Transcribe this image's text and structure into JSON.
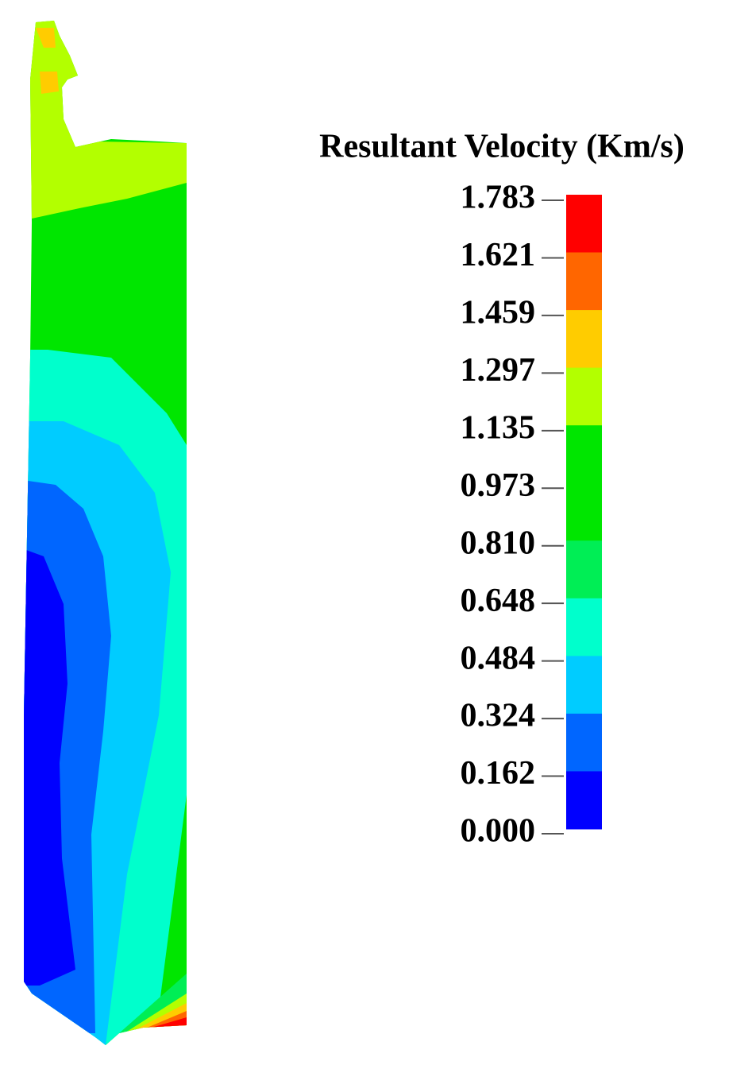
{
  "legend": {
    "title": "Resultant Velocity (Km/s)",
    "ticks": [
      "1.783",
      "1.621",
      "1.459",
      "1.297",
      "1.135",
      "0.973",
      "0.810",
      "0.648",
      "0.484",
      "0.324",
      "0.162",
      "0.000"
    ],
    "colors": [
      "#ff0000",
      "#ff6600",
      "#ffcc00",
      "#b3ff00",
      "#00e600",
      "#00e600",
      "#00ee55",
      "#00ffcc",
      "#00ccff",
      "#0066ff",
      "#0000ff"
    ]
  }
}
